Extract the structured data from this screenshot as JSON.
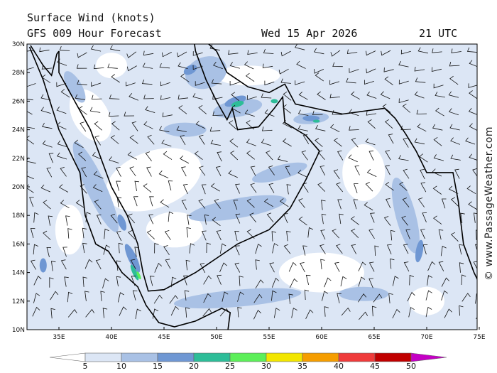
{
  "header": {
    "title": "Surface Wind (knots)",
    "subtitle": "GFS 009 Hour Forecast",
    "date": "Wed 15 Apr 2026",
    "time": "21 UTC"
  },
  "map": {
    "lat_labels": [
      "30N",
      "28N",
      "26N",
      "24N",
      "22N",
      "20N",
      "18N",
      "16N",
      "14N",
      "12N",
      "10N"
    ],
    "lon_labels": [
      "35E",
      "40E",
      "45E",
      "50E",
      "55E",
      "60E",
      "65E",
      "70E",
      "75E"
    ]
  },
  "colorbar": {
    "labels": [
      5,
      10,
      15,
      20,
      25,
      30,
      35,
      40,
      45,
      50
    ],
    "colors": [
      "#ffffff",
      "#dce6f5",
      "#a9c1e5",
      "#6f97d3",
      "#2dbd98",
      "#5cef59",
      "#f2e600",
      "#f59d00",
      "#ef3b3b",
      "#c00000",
      "#c400c4"
    ]
  },
  "credit": "© www.PassageWeather.com"
}
